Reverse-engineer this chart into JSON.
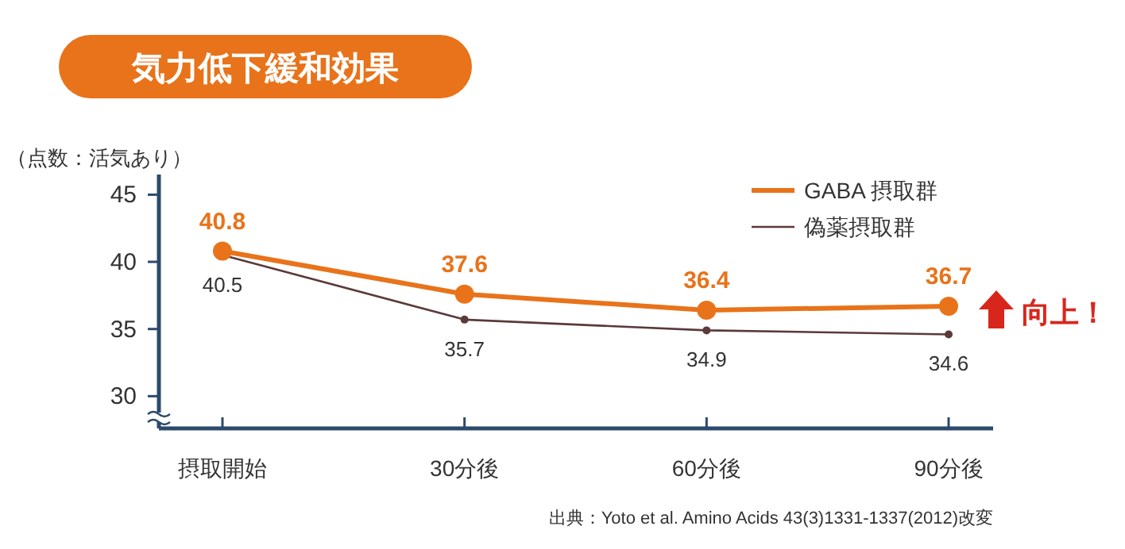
{
  "chart_data": {
    "type": "line",
    "title": "気力低下緩和効果",
    "ylabel": "（点数：活気あり）",
    "categories": [
      "摂取開始",
      "30分後",
      "60分後",
      "90分後"
    ],
    "series": [
      {
        "name": "GABA 摂取群",
        "color": "#e8731a",
        "values": [
          40.8,
          37.6,
          36.4,
          36.7
        ]
      },
      {
        "name": "偽薬摂取群",
        "color": "#5a3a3a",
        "values": [
          40.5,
          35.7,
          34.9,
          34.6
        ]
      }
    ],
    "ylim": [
      27.6,
      46.5
    ],
    "yticks": [
      30,
      35,
      40,
      45
    ],
    "data_labels": true,
    "marker": "circle",
    "legend": "top right",
    "grid": false,
    "annotations": [
      "向上！",
      "出典：Yoto et al. Amino Acids 43(3)1331-1337(2012)改変"
    ]
  }
}
